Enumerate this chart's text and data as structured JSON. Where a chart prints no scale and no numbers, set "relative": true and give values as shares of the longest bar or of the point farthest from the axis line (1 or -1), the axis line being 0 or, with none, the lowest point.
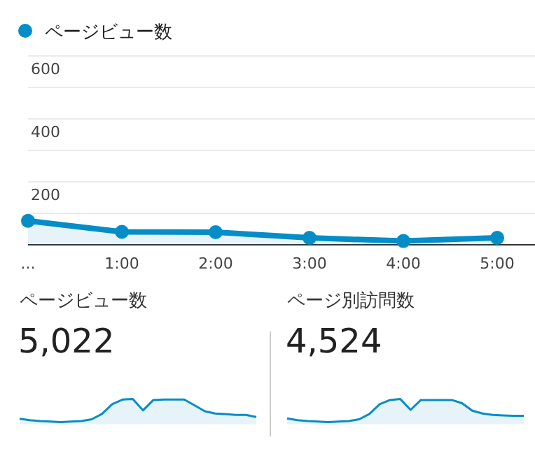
{
  "chart_data": [
    {
      "type": "area",
      "categories": [
        "...",
        "1:00",
        "2:00",
        "3:00",
        "4:00",
        "5:00"
      ],
      "series": [
        {
          "name": "ページビュー数",
          "color": "#058dc7",
          "values": [
            76,
            41,
            40,
            22,
            12,
            22
          ]
        }
      ],
      "ylim": [
        0,
        600
      ],
      "yticks": [
        {
          "value": 100,
          "label": null
        },
        200,
        {
          "value": 300,
          "label": null
        },
        400,
        {
          "value": 500,
          "label": null
        },
        600
      ],
      "grid": "y",
      "legend": "top left",
      "marker": "circle"
    },
    {
      "type": "area",
      "title": "ページビュー数",
      "subtitle": "5,022",
      "relative": true,
      "categories": [
        null,
        null,
        null,
        null,
        null,
        null,
        null,
        null,
        null,
        null,
        null,
        null,
        null,
        null,
        null,
        null,
        null,
        null,
        null,
        null,
        null,
        null,
        null,
        null
      ],
      "series": [
        {
          "color": "#058dc7",
          "values": [
            0.14,
            0.08,
            0.04,
            0.02,
            0,
            0.02,
            0.04,
            0.12,
            0.35,
            0.78,
            0.98,
            1,
            0.51,
            0.96,
            0.98,
            0.98,
            0.98,
            0.73,
            0.47,
            0.37,
            0.35,
            0.31,
            0.31,
            0.22
          ]
        }
      ]
    },
    {
      "type": "area",
      "title": "ページ別訪問数",
      "subtitle": "4,524",
      "relative": true,
      "categories": [
        null,
        null,
        null,
        null,
        null,
        null,
        null,
        null,
        null,
        null,
        null,
        null,
        null,
        null,
        null,
        null,
        null,
        null,
        null,
        null,
        null,
        null,
        null,
        null
      ],
      "series": [
        {
          "color": "#058dc7",
          "values": [
            0.16,
            0.08,
            0.04,
            0.02,
            0,
            0.02,
            0.04,
            0.12,
            0.35,
            0.78,
            0.96,
            1,
            0.53,
            0.96,
            0.96,
            0.96,
            0.96,
            0.82,
            0.49,
            0.37,
            0.31,
            0.29,
            0.27,
            0.27
          ]
        }
      ]
    }
  ]
}
